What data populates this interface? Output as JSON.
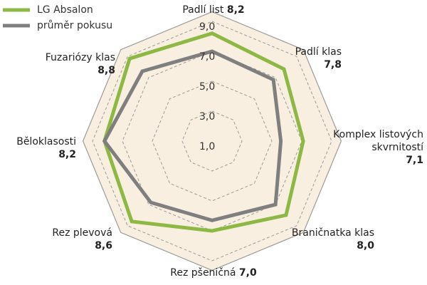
{
  "chart_data": {
    "type": "radar",
    "categories": [
      "Padlí list",
      "Padlí klas",
      "Komplex listových skvrnitostí",
      "Braničnatka klas",
      "Rez pšeničná",
      "Rez plevová",
      "Běloklasosti",
      "Fuzariózy klas"
    ],
    "series": [
      {
        "name": "LG Absalon",
        "color": "#8db843",
        "values": [
          8.2,
          7.8,
          7.1,
          8.0,
          7.0,
          8.6,
          8.2,
          8.8
        ],
        "value_labels": [
          "8,2",
          "7,8",
          "7,1",
          "8,0",
          "7,0",
          "8,6",
          "8,2",
          "8,8"
        ]
      },
      {
        "name": "průměr pokusu",
        "color": "#7f7f7f",
        "values": [
          7.0,
          6.8,
          5.6,
          7.0,
          6.3,
          6.8,
          8.2,
          7.6
        ]
      }
    ],
    "rlim": [
      1,
      9
    ],
    "rticks": [
      {
        "value": 1,
        "label": "1,0"
      },
      {
        "value": 3,
        "label": "3,0"
      },
      {
        "value": 5,
        "label": "5,0"
      },
      {
        "value": 7,
        "label": "7,0"
      },
      {
        "value": 9,
        "label": "9,0"
      }
    ],
    "grid": true,
    "legend": "top-left"
  }
}
